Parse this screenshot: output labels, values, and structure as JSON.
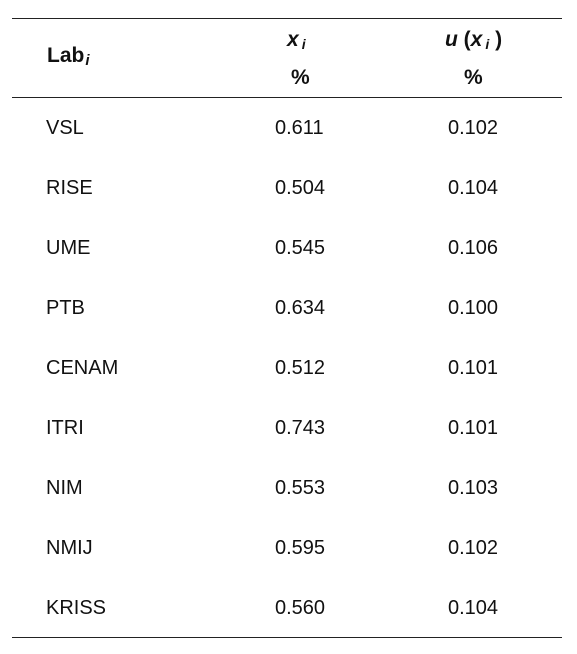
{
  "table": {
    "header": {
      "lab": "Lab",
      "lab_sub": "i",
      "x": "x",
      "x_sub": "i",
      "u": "u",
      "u_open": "(",
      "u_x": "x",
      "u_x_sub": "i",
      "u_close": ")",
      "x_unit": "%",
      "u_unit": "%"
    },
    "rows": [
      {
        "lab": "VSL",
        "xi": "0.611",
        "ux": "0.102"
      },
      {
        "lab": "RISE",
        "xi": "0.504",
        "ux": "0.104"
      },
      {
        "lab": "UME",
        "xi": "0.545",
        "ux": "0.106"
      },
      {
        "lab": "PTB",
        "xi": "0.634",
        "ux": "0.100"
      },
      {
        "lab": "CENAM",
        "xi": "0.512",
        "ux": "0.101"
      },
      {
        "lab": "ITRI",
        "xi": "0.743",
        "ux": "0.101"
      },
      {
        "lab": "NIM",
        "xi": "0.553",
        "ux": "0.103"
      },
      {
        "lab": "NMIJ",
        "xi": "0.595",
        "ux": "0.102"
      },
      {
        "lab": "KRISS",
        "xi": "0.560",
        "ux": "0.104"
      }
    ]
  }
}
